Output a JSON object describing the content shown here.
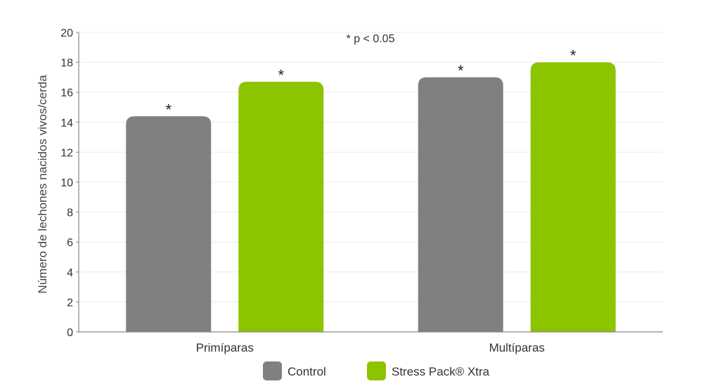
{
  "chart_data": {
    "type": "bar",
    "categories": [
      "Primíparas",
      "Multíparas"
    ],
    "series": [
      {
        "name": "Control",
        "color": "#808080",
        "values": [
          14.4,
          17.0
        ]
      },
      {
        "name": "Stress Pack® Xtra",
        "color": "#8dc400",
        "values": [
          16.7,
          18.0
        ]
      }
    ],
    "ylabel": "Número de lechones nacidos vivos/cerda",
    "xlabel": "",
    "ylim": [
      0,
      20
    ],
    "yticks": [
      0,
      2,
      4,
      6,
      8,
      10,
      12,
      14,
      16,
      18,
      20
    ],
    "grid": true,
    "annotation": "* p < 0.05",
    "significance_marker": "*",
    "legend_position": "bottom-center"
  }
}
